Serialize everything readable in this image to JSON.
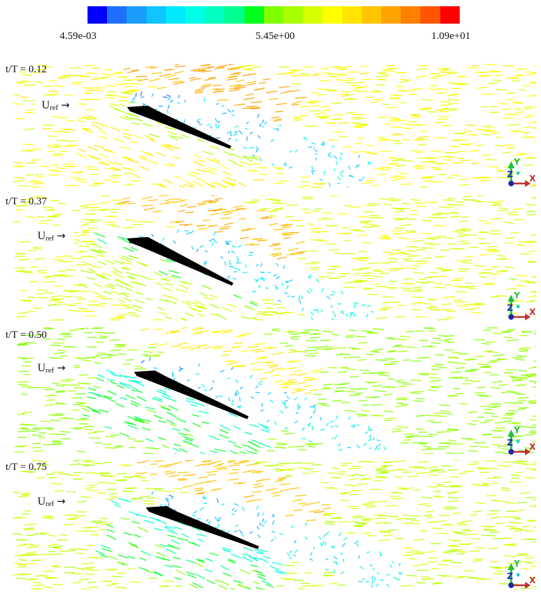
{
  "colorbar": {
    "min_label": "4.59e-03",
    "mid_label": "5.45e+00",
    "max_label": "1.09e+01",
    "colors": [
      "#0000ff",
      "#1f6fff",
      "#1a9cff",
      "#10c4ff",
      "#00eaff",
      "#00ffe6",
      "#00ffc0",
      "#00ff90",
      "#00ff1a",
      "#80ff00",
      "#a8ff00",
      "#d6ff00",
      "#ffff00",
      "#ffe500",
      "#ffc400",
      "#ffa300",
      "#ff7f00",
      "#ff5500",
      "#ff0000"
    ]
  },
  "panels": [
    {
      "time_label": "t/T = 0.12",
      "uref_label": "U",
      "uref_sub": "ref",
      "uref_arrow": "→",
      "axis": {
        "y": "Y",
        "z": "Z",
        "x": "X"
      }
    },
    {
      "time_label": "t/T = 0.37",
      "uref_label": "U",
      "uref_sub": "ref",
      "uref_arrow": "→",
      "axis": {
        "y": "Y",
        "z": "Z",
        "x": "X"
      }
    },
    {
      "time_label": "t/T = 0.50",
      "uref_label": "U",
      "uref_sub": "ref",
      "uref_arrow": "→",
      "axis": {
        "y": "Y",
        "z": "Z",
        "x": "X"
      }
    },
    {
      "time_label": "t/T = 0.75",
      "uref_label": "U",
      "uref_sub": "ref",
      "uref_arrow": "→",
      "axis": {
        "y": "Y",
        "z": "Z",
        "x": "X"
      }
    }
  ]
}
